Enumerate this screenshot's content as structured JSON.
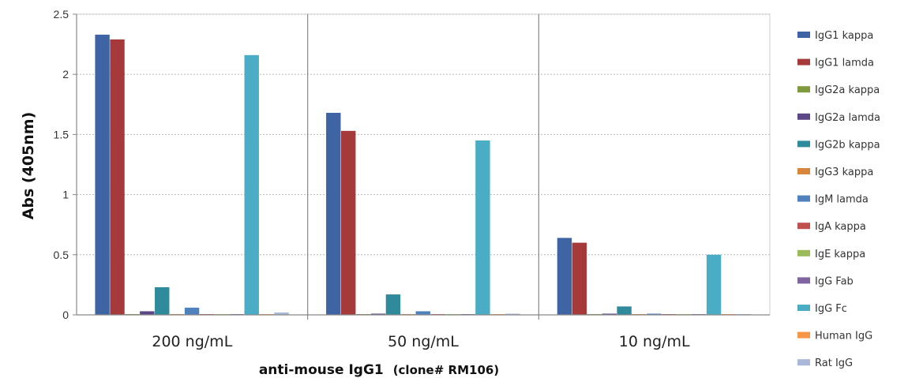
{
  "chart_data": {
    "type": "bar",
    "ylabel": "Abs (405nm)",
    "xlabel": "anti-mouse IgG1",
    "xlabel_suffix": "(clone# RM106)",
    "ylim": [
      0,
      2.5
    ],
    "yticks": [
      "0",
      "0.5",
      "1",
      "1.5",
      "2",
      "2.5"
    ],
    "grid": true,
    "legend_position": "right",
    "categories": [
      "200 ng/mL",
      "50 ng/mL",
      "10 ng/mL"
    ],
    "series": [
      {
        "name": "IgG1 kappa",
        "color": "#3e64a3",
        "values": [
          2.33,
          1.68,
          0.64
        ]
      },
      {
        "name": "IgG1 lamda",
        "color": "#a63a3a",
        "values": [
          2.29,
          1.53,
          0.6
        ]
      },
      {
        "name": "IgG2a kappa",
        "color": "#7f9a3d",
        "values": [
          0.005,
          0.005,
          0.005
        ]
      },
      {
        "name": "IgG2a lamda",
        "color": "#5b4785",
        "values": [
          0.03,
          0.01,
          0.01
        ]
      },
      {
        "name": "IgG2b kappa",
        "color": "#2f8a9c",
        "values": [
          0.23,
          0.17,
          0.07
        ]
      },
      {
        "name": "IgG3 kappa",
        "color": "#d9853b",
        "values": [
          0.005,
          0.005,
          0.005
        ]
      },
      {
        "name": "IgM lamda",
        "color": "#4f81bd",
        "values": [
          0.06,
          0.03,
          0.01
        ]
      },
      {
        "name": "IgA kappa",
        "color": "#c0504d",
        "values": [
          0.005,
          0.005,
          0.005
        ]
      },
      {
        "name": "IgE kappa",
        "color": "#9bbb59",
        "values": [
          0.005,
          0.005,
          0.005
        ]
      },
      {
        "name": "IgG Fab",
        "color": "#8064a2",
        "values": [
          0.005,
          0.005,
          0.005
        ]
      },
      {
        "name": "IgG Fc",
        "color": "#4bacc6",
        "values": [
          2.16,
          1.45,
          0.5
        ]
      },
      {
        "name": "Human IgG",
        "color": "#f79646",
        "values": [
          0.005,
          0.005,
          0.005
        ]
      },
      {
        "name": "Rat IgG",
        "color": "#a9b8d9",
        "values": [
          0.02,
          0.01,
          0.005
        ]
      }
    ]
  }
}
